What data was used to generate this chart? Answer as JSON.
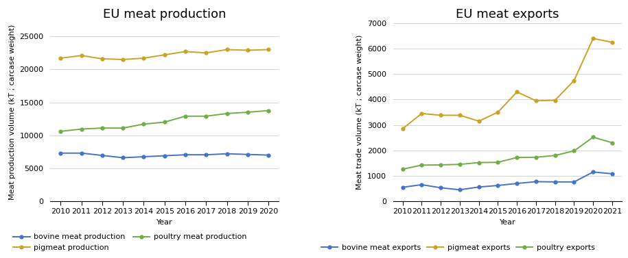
{
  "prod_years": [
    2010,
    2011,
    2012,
    2013,
    2014,
    2015,
    2016,
    2017,
    2018,
    2019,
    2020
  ],
  "bovine_prod": [
    7300,
    7300,
    6950,
    6600,
    6750,
    6900,
    7050,
    7050,
    7200,
    7100,
    7000
  ],
  "pigmeat_prod": [
    21700,
    22100,
    21600,
    21500,
    21700,
    22200,
    22700,
    22500,
    23000,
    22900,
    23000
  ],
  "poultry_prod": [
    10600,
    10950,
    11100,
    11100,
    11700,
    12000,
    12900,
    12900,
    13300,
    13500,
    13750
  ],
  "exp_years": [
    2010,
    2011,
    2012,
    2013,
    2014,
    2015,
    2016,
    2017,
    2018,
    2019,
    2020,
    2021
  ],
  "bovine_exp": [
    550,
    650,
    530,
    450,
    560,
    620,
    700,
    770,
    760,
    760,
    1150,
    1080
  ],
  "pigmeat_exp": [
    2850,
    3450,
    3380,
    3380,
    3150,
    3500,
    4300,
    3950,
    3970,
    4750,
    6400,
    6250
  ],
  "poultry_exp": [
    1260,
    1420,
    1430,
    1450,
    1520,
    1530,
    1720,
    1730,
    1800,
    1980,
    2520,
    2300
  ],
  "prod_title": "EU meat production",
  "exp_title": "EU meat exports",
  "prod_ylabel": "Meat production volume (kT ; carcase weight)",
  "exp_ylabel": "Meat trade volume (kT ; carcase weight)",
  "xlabel": "Year",
  "prod_ylim": [
    0,
    27000
  ],
  "exp_ylim": [
    0,
    7000
  ],
  "prod_yticks": [
    0,
    5000,
    10000,
    15000,
    20000,
    25000
  ],
  "exp_yticks": [
    0,
    1000,
    2000,
    3000,
    4000,
    5000,
    6000,
    7000
  ],
  "bovine_color": "#4472C4",
  "pigmeat_color": "#C9A227",
  "poultry_color": "#70AD47",
  "bovine_prod_label": "bovine meat production",
  "pigmeat_prod_label": "pigmeat production",
  "poultry_prod_label": "poultry meat production",
  "bovine_exp_label": "bovine meat exports",
  "pigmeat_exp_label": "pigmeat exports",
  "poultry_exp_label": "poultry exports",
  "title_fontsize": 13,
  "axis_label_fontsize": 8,
  "tick_fontsize": 8,
  "legend_fontsize": 8,
  "background_color": "#ffffff"
}
